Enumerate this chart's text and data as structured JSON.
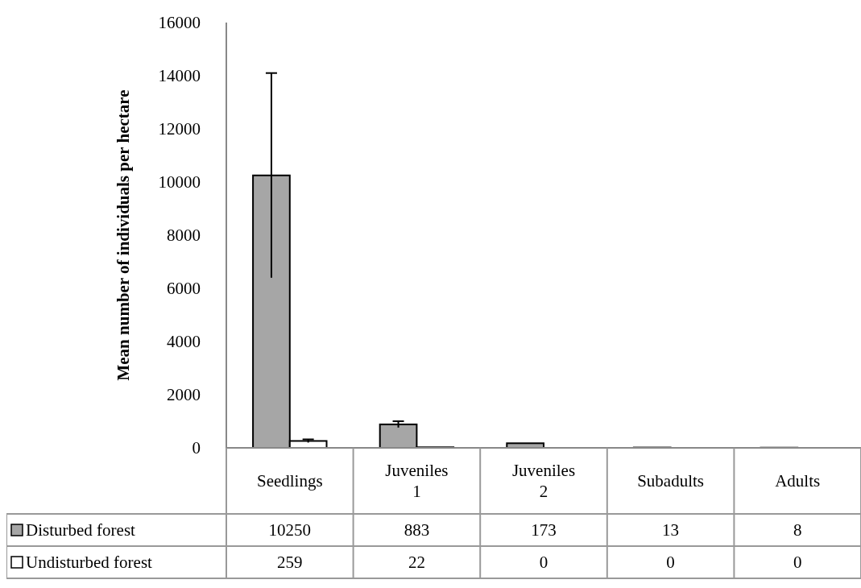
{
  "chart_data": {
    "type": "bar",
    "ylabel": "Mean number of individuals per hectare",
    "categories": [
      "Seedlings",
      "Juveniles 1",
      "Juveniles 2",
      "Subadults",
      "Adults"
    ],
    "series": [
      {
        "name": "Disturbed forest",
        "color": "#a6a6a6",
        "values": [
          10250,
          883,
          173,
          13,
          8
        ],
        "errors": [
          3850,
          120,
          null,
          null,
          null
        ]
      },
      {
        "name": "Undisturbed forest",
        "color": "#ffffff",
        "values": [
          259,
          22,
          0,
          0,
          0
        ],
        "errors": [
          60,
          null,
          null,
          null,
          null
        ]
      }
    ],
    "ylim": [
      0,
      16000
    ],
    "yticks": [
      0,
      2000,
      4000,
      6000,
      8000,
      10000,
      12000,
      14000,
      16000
    ],
    "data_labels": true,
    "legend": "bottom"
  }
}
